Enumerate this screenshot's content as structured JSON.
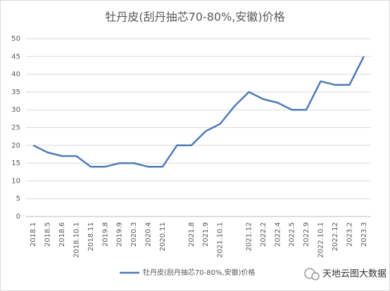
{
  "chart_data": {
    "type": "line",
    "title": "牡丹皮(刮丹抽芯70-80%,安徽)价格",
    "categories": [
      "2018.1",
      "2018.5",
      "2018.6",
      "2018.10.1",
      "2018.11",
      "2019.8",
      "2019.9",
      "2020.3",
      "2020.4",
      "2020.11",
      null,
      "2021.8",
      "2021.9",
      "2021.10.1",
      null,
      "2021.12",
      "2022.2",
      "2022.4",
      "2022.5",
      "2022.9",
      "2022.10.1",
      "2022.12",
      "2023.2",
      "2023.3"
    ],
    "series": [
      {
        "name": "牡丹皮(刮丹抽芯70-80%,安徽)价格",
        "color": "#4f7ab8",
        "values": [
          20,
          18,
          17,
          17,
          14,
          14,
          15,
          15,
          14,
          14,
          20,
          20,
          24,
          26,
          31,
          35,
          33,
          32,
          30,
          30,
          38,
          37,
          37,
          45
        ]
      }
    ],
    "ylim": [
      0,
      50
    ],
    "yticks": [
      0,
      5,
      10,
      15,
      20,
      25,
      30,
      35,
      40,
      45,
      50
    ],
    "grid": true,
    "legend": "bottom",
    "watermark": "天地云图大数据"
  }
}
